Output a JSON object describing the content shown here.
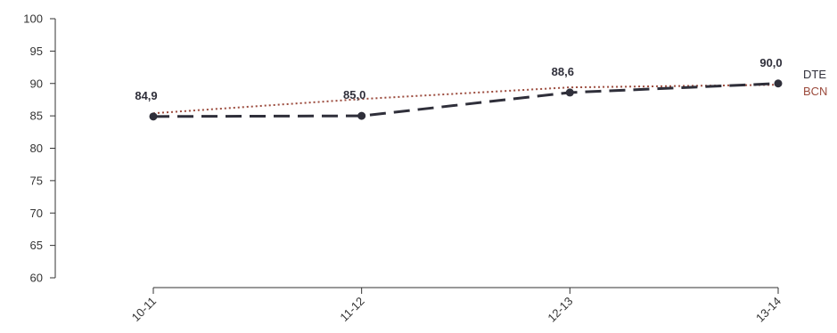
{
  "chart_data": {
    "type": "line",
    "categories": [
      "10-11",
      "11-12",
      "12-13",
      "13-14"
    ],
    "ylim": [
      60,
      100
    ],
    "yticks": [
      "60",
      "65",
      "70",
      "75",
      "80",
      "85",
      "90",
      "95",
      "100"
    ],
    "series": [
      {
        "name": "DTE",
        "values": [
          84.9,
          85.0,
          88.6,
          90.0
        ],
        "labels": [
          "84,9",
          "85,0",
          "88,6",
          "90,0"
        ],
        "color": "#2f2f3a",
        "style": "dashed",
        "markers": true
      },
      {
        "name": "BCN",
        "values": [
          85.4,
          87.6,
          89.4,
          89.8
        ],
        "color": "#9b4a3c",
        "style": "dotted",
        "markers": false
      }
    ],
    "legend_position": "right-end"
  }
}
